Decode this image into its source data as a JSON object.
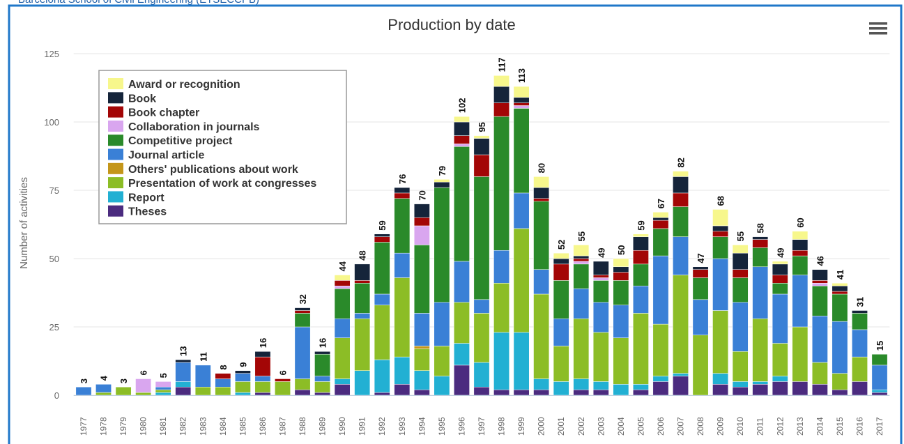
{
  "page": {
    "header": "Barcelona School of Civil Engineering (ETSECCPB)"
  },
  "chart_data": {
    "type": "bar",
    "stacked": true,
    "title": "Production by date",
    "ylabel": "Number of activities",
    "categories": [
      "1977",
      "1978",
      "1979",
      "1980",
      "1981",
      "1982",
      "1983",
      "1984",
      "1985",
      "1986",
      "1987",
      "1988",
      "1989",
      "1990",
      "1991",
      "1992",
      "1993",
      "1994",
      "1995",
      "1996",
      "1997",
      "1998",
      "1999",
      "2000",
      "2001",
      "2002",
      "2003",
      "2004",
      "2005",
      "2006",
      "2007",
      "2008",
      "2009",
      "2010",
      "2011",
      "2012",
      "2013",
      "2014",
      "2015",
      "2016",
      "2017"
    ],
    "totals": [
      3,
      4,
      3,
      6,
      5,
      13,
      11,
      8,
      9,
      16,
      6,
      32,
      16,
      44,
      48,
      59,
      76,
      70,
      79,
      102,
      95,
      117,
      113,
      80,
      52,
      55,
      49,
      50,
      59,
      67,
      82,
      47,
      68,
      55,
      58,
      49,
      60,
      46,
      41,
      31,
      15
    ],
    "series": [
      {
        "name": "Award or recognition",
        "color": "#f7f78c",
        "values": [
          0,
          0,
          0,
          0,
          0,
          0,
          0,
          0,
          0,
          0,
          0,
          0,
          0,
          2,
          0,
          0,
          0,
          0,
          1,
          2,
          1,
          4,
          4,
          4,
          2,
          4,
          0,
          3,
          1,
          2,
          2,
          0,
          6,
          3,
          0,
          1,
          3,
          0,
          1,
          0,
          0
        ]
      },
      {
        "name": "Book",
        "color": "#15243a",
        "values": [
          0,
          0,
          0,
          0,
          0,
          1,
          0,
          0,
          1,
          2,
          0,
          1,
          1,
          0,
          6,
          1,
          2,
          5,
          2,
          5,
          6,
          6,
          2,
          4,
          2,
          1,
          5,
          2,
          5,
          1,
          6,
          1,
          2,
          6,
          1,
          4,
          4,
          4,
          2,
          1,
          0
        ]
      },
      {
        "name": "Book chapter",
        "color": "#a30606",
        "values": [
          0,
          0,
          0,
          0,
          0,
          0,
          0,
          2,
          0,
          7,
          1,
          1,
          0,
          2,
          1,
          2,
          2,
          3,
          0,
          3,
          8,
          5,
          1,
          1,
          6,
          1,
          1,
          3,
          5,
          3,
          5,
          3,
          2,
          3,
          3,
          3,
          2,
          1,
          1,
          0,
          0
        ]
      },
      {
        "name": "Collaboration in journals",
        "color": "#d9a6ef",
        "values": [
          0,
          0,
          0,
          5,
          2,
          0,
          0,
          0,
          0,
          0,
          0,
          0,
          0,
          1,
          0,
          0,
          0,
          7,
          0,
          1,
          0,
          0,
          1,
          0,
          0,
          1,
          1,
          0,
          0,
          0,
          0,
          0,
          0,
          0,
          0,
          0,
          0,
          1,
          0,
          0,
          0
        ]
      },
      {
        "name": "Competitive project",
        "color": "#2a8a2a",
        "values": [
          0,
          0,
          0,
          0,
          0,
          0,
          0,
          0,
          0,
          0,
          0,
          5,
          8,
          11,
          11,
          19,
          20,
          25,
          42,
          42,
          45,
          49,
          31,
          25,
          14,
          9,
          8,
          9,
          8,
          10,
          11,
          8,
          8,
          9,
          7,
          4,
          7,
          11,
          10,
          6,
          4
        ]
      },
      {
        "name": "Journal article",
        "color": "#3a80d6",
        "values": [
          3,
          3,
          0,
          0,
          1,
          7,
          8,
          3,
          3,
          2,
          0,
          19,
          2,
          7,
          2,
          4,
          9,
          12,
          16,
          15,
          5,
          12,
          13,
          9,
          10,
          11,
          11,
          12,
          10,
          25,
          14,
          13,
          19,
          18,
          19,
          18,
          19,
          17,
          19,
          10,
          9
        ]
      },
      {
        "name": "Others' publications about work",
        "color": "#c4961a",
        "values": [
          0,
          0,
          0,
          0,
          0,
          0,
          0,
          0,
          0,
          0,
          0,
          0,
          0,
          0,
          0,
          0,
          0,
          1,
          0,
          0,
          0,
          0,
          0,
          0,
          0,
          0,
          0,
          0,
          0,
          0,
          0,
          0,
          0,
          0,
          0,
          0,
          0,
          0,
          0,
          0,
          0
        ]
      },
      {
        "name": "Presentation of work at congresses",
        "color": "#8cbd26",
        "values": [
          0,
          1,
          3,
          1,
          1,
          0,
          3,
          3,
          4,
          4,
          5,
          4,
          4,
          15,
          19,
          20,
          29,
          8,
          11,
          15,
          18,
          18,
          38,
          31,
          13,
          22,
          18,
          17,
          26,
          19,
          36,
          22,
          23,
          11,
          23,
          12,
          20,
          8,
          6,
          9,
          0
        ]
      },
      {
        "name": "Report",
        "color": "#22b0d3",
        "values": [
          0,
          0,
          0,
          0,
          1,
          2,
          0,
          0,
          1,
          0,
          0,
          0,
          0,
          2,
          9,
          12,
          10,
          7,
          7,
          8,
          9,
          21,
          21,
          4,
          5,
          4,
          3,
          4,
          2,
          2,
          1,
          0,
          4,
          2,
          1,
          2,
          0,
          0,
          0,
          0,
          1
        ]
      },
      {
        "name": "Theses",
        "color": "#4b2b7f",
        "values": [
          0,
          0,
          0,
          0,
          0,
          3,
          0,
          0,
          0,
          1,
          0,
          2,
          1,
          4,
          0,
          1,
          4,
          2,
          0,
          11,
          3,
          2,
          2,
          2,
          0,
          2,
          2,
          0,
          2,
          5,
          7,
          0,
          4,
          3,
          4,
          5,
          5,
          4,
          2,
          5,
          1
        ]
      }
    ],
    "ylim": [
      0,
      125
    ],
    "yticks": [
      0,
      25,
      50,
      75,
      100,
      125
    ],
    "grid": true,
    "legend": "top-left"
  }
}
